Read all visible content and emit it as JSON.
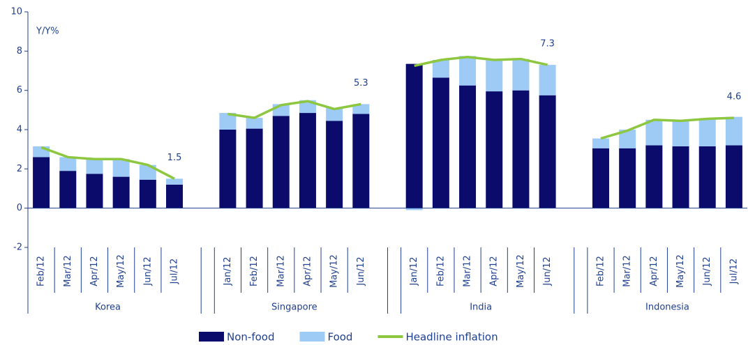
{
  "chart_data": {
    "type": "bar",
    "stacked": true,
    "y_label": "Y/Y%",
    "ylim": [
      -2,
      10
    ],
    "yticks": [
      -2,
      0,
      2,
      4,
      6,
      8,
      10
    ],
    "groups": [
      {
        "name": "Korea",
        "categories": [
          "Feb/12",
          "Mar/12",
          "Apr/12",
          "May/12",
          "Jun/12",
          "Jul/12"
        ]
      },
      {
        "name": "Singapore",
        "categories": [
          "Jan/12",
          "Feb/12",
          "Mar/12",
          "Apr/12",
          "May/12",
          "Jun/12"
        ]
      },
      {
        "name": "India",
        "categories": [
          "Jan/12",
          "Feb/12",
          "Mar/12",
          "Apr/12",
          "May/12",
          "Jun/12"
        ]
      },
      {
        "name": "Indonesia",
        "categories": [
          "Feb/12",
          "Mar/12",
          "Apr/12",
          "May/12",
          "Jun/12",
          "Jul/12"
        ]
      }
    ],
    "series": [
      {
        "name": "Non-food",
        "type": "bar",
        "color": "#0b0b6b",
        "values": [
          [
            2.6,
            1.9,
            1.75,
            1.6,
            1.45,
            1.2
          ],
          [
            4.0,
            4.05,
            4.7,
            4.85,
            4.45,
            4.8
          ],
          [
            7.35,
            6.65,
            6.25,
            5.95,
            6.0,
            5.75
          ],
          [
            3.05,
            3.05,
            3.2,
            3.15,
            3.15,
            3.2
          ]
        ]
      },
      {
        "name": "Food",
        "type": "bar",
        "color": "#9ecbf5",
        "values": [
          [
            0.55,
            0.7,
            0.75,
            0.9,
            0.75,
            0.3
          ],
          [
            0.85,
            0.55,
            0.6,
            0.65,
            0.65,
            0.5
          ],
          [
            -0.1,
            0.9,
            1.5,
            1.6,
            1.6,
            1.55
          ],
          [
            0.5,
            0.95,
            1.3,
            1.35,
            1.4,
            1.45
          ]
        ]
      },
      {
        "name": "Headline inflation",
        "type": "line",
        "color": "#8dc63f",
        "values": [
          [
            3.1,
            2.6,
            2.5,
            2.5,
            2.2,
            1.5
          ],
          [
            4.8,
            4.6,
            5.25,
            5.45,
            5.05,
            5.3
          ],
          [
            7.25,
            7.55,
            7.7,
            7.55,
            7.6,
            7.3
          ],
          [
            3.55,
            3.95,
            4.5,
            4.45,
            4.55,
            4.6
          ]
        ],
        "value_labels": [
          [
            null,
            null,
            null,
            null,
            null,
            "1.5"
          ],
          [
            null,
            null,
            null,
            null,
            null,
            "5.3"
          ],
          [
            null,
            null,
            null,
            null,
            null,
            "7.3"
          ],
          [
            null,
            null,
            null,
            null,
            null,
            "4.6"
          ]
        ]
      }
    ]
  }
}
